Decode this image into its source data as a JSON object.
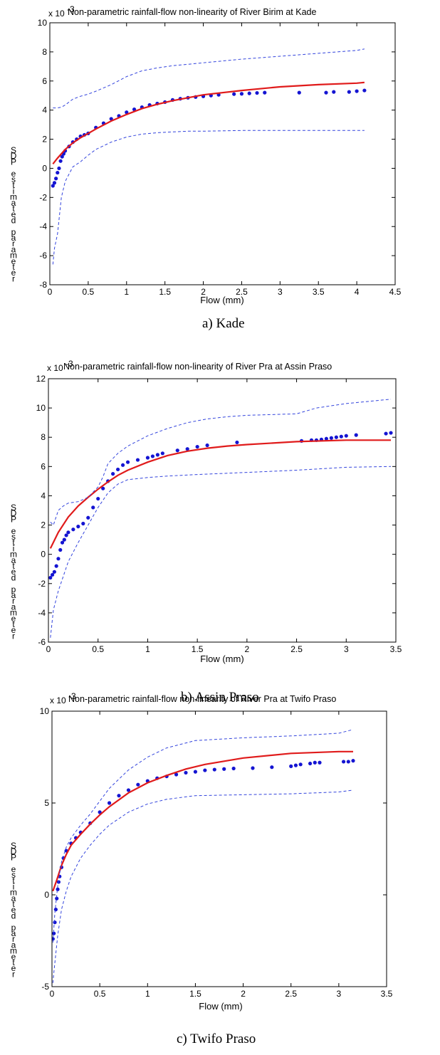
{
  "chart_data": [
    {
      "type": "scatter",
      "panel": "Kade",
      "title": "Non-parametric rainfall-flow non-linearity of River Birim at Kade",
      "y_exponent": "x 10",
      "y_exponent_power": "-3",
      "xlabel": "Flow (mm)",
      "ylabel": "SDP estimated parameter",
      "caption": "a) Kade",
      "xlim": [
        0,
        4.5
      ],
      "ylim": [
        -8,
        10
      ],
      "xticks": [
        "0",
        "0.5",
        "1",
        "1.5",
        "2",
        "2.5",
        "3",
        "3.5",
        "4",
        "4.5"
      ],
      "yticks": [
        "-8",
        "-6",
        "-4",
        "-2",
        "0",
        "2",
        "4",
        "6",
        "8",
        "10"
      ],
      "grid": false,
      "series": [
        {
          "kind": "points",
          "color": "#1414d2",
          "x": [
            0.04,
            0.06,
            0.08,
            0.1,
            0.12,
            0.14,
            0.16,
            0.18,
            0.2,
            0.25,
            0.3,
            0.35,
            0.4,
            0.45,
            0.5,
            0.6,
            0.7,
            0.8,
            0.9,
            1.0,
            1.1,
            1.2,
            1.3,
            1.4,
            1.5,
            1.6,
            1.7,
            1.8,
            1.9,
            2.0,
            2.1,
            2.2,
            2.4,
            2.5,
            2.6,
            2.7,
            2.8,
            3.25,
            3.6,
            3.7,
            3.9,
            4.0,
            4.1
          ],
          "y": [
            -1.2,
            -1.0,
            -0.7,
            -0.3,
            0.0,
            0.5,
            0.8,
            1.0,
            1.2,
            1.5,
            1.8,
            2.0,
            2.2,
            2.3,
            2.4,
            2.8,
            3.1,
            3.4,
            3.6,
            3.85,
            4.05,
            4.2,
            4.35,
            4.45,
            4.55,
            4.7,
            4.78,
            4.85,
            4.9,
            4.95,
            5.0,
            5.05,
            5.1,
            5.12,
            5.15,
            5.18,
            5.2,
            5.2,
            5.2,
            5.25,
            5.25,
            5.3,
            5.35
          ]
        },
        {
          "kind": "line",
          "color": "#e01b1b",
          "x": [
            0.04,
            0.1,
            0.2,
            0.3,
            0.4,
            0.5,
            0.6,
            0.8,
            1.0,
            1.2,
            1.4,
            1.6,
            1.8,
            2.0,
            2.5,
            3.0,
            3.5,
            4.0,
            4.1
          ],
          "y": [
            0.3,
            0.7,
            1.3,
            1.75,
            2.1,
            2.4,
            2.7,
            3.25,
            3.7,
            4.1,
            4.4,
            4.65,
            4.85,
            5.05,
            5.35,
            5.6,
            5.75,
            5.85,
            5.9
          ]
        },
        {
          "kind": "dashed",
          "color": "#3344dd",
          "x": [
            0.04,
            0.1,
            0.15,
            0.2,
            0.25,
            0.3,
            0.4,
            0.5,
            0.6,
            0.8,
            1.0,
            1.2,
            1.4,
            1.6,
            1.8,
            2.0,
            2.5,
            3.0,
            3.5,
            4.0,
            4.1
          ],
          "y": [
            4.15,
            4.15,
            4.2,
            4.35,
            4.55,
            4.75,
            4.95,
            5.1,
            5.3,
            5.75,
            6.3,
            6.7,
            6.9,
            7.05,
            7.15,
            7.25,
            7.5,
            7.7,
            7.9,
            8.1,
            8.2
          ]
        },
        {
          "kind": "dashed",
          "color": "#3344dd",
          "x": [
            0.04,
            0.06,
            0.1,
            0.15,
            0.2,
            0.3,
            0.4,
            0.5,
            0.6,
            0.8,
            1.0,
            1.2,
            1.4,
            1.6,
            1.8,
            2.0,
            2.5,
            3.0,
            3.5,
            4.0,
            4.1
          ],
          "y": [
            -6.6,
            -5.5,
            -4.5,
            -2.0,
            -0.9,
            0.1,
            0.45,
            0.9,
            1.3,
            1.8,
            2.15,
            2.35,
            2.45,
            2.5,
            2.55,
            2.55,
            2.6,
            2.6,
            2.6,
            2.6,
            2.6
          ]
        }
      ]
    },
    {
      "type": "scatter",
      "panel": "Assin Praso",
      "title": "Non-parametric rainfall-flow non-linearity of River Pra at Assin Praso",
      "y_exponent": "x 10",
      "y_exponent_power": "-3",
      "xlabel": "Flow (mm)",
      "ylabel": "SDP estimated parameter",
      "caption": "b) Assin Praso",
      "xlim": [
        0,
        3.5
      ],
      "ylim": [
        -6,
        12
      ],
      "xticks": [
        "0",
        "0.5",
        "1",
        "1.5",
        "2",
        "2.5",
        "3",
        "3.5"
      ],
      "yticks": [
        "-6",
        "-4",
        "-2",
        "0",
        "2",
        "4",
        "6",
        "8",
        "10",
        "12"
      ],
      "grid": false,
      "series": [
        {
          "kind": "points",
          "color": "#1414d2",
          "x": [
            0.02,
            0.04,
            0.06,
            0.08,
            0.1,
            0.12,
            0.14,
            0.16,
            0.18,
            0.2,
            0.25,
            0.3,
            0.35,
            0.4,
            0.45,
            0.5,
            0.55,
            0.6,
            0.65,
            0.7,
            0.75,
            0.8,
            0.9,
            1.0,
            1.05,
            1.1,
            1.15,
            1.3,
            1.4,
            1.5,
            1.6,
            1.9,
            2.55,
            2.65,
            2.7,
            2.75,
            2.8,
            2.85,
            2.9,
            2.95,
            3.0,
            3.1,
            3.4,
            3.45
          ],
          "y": [
            -1.6,
            -1.4,
            -1.2,
            -0.8,
            -0.3,
            0.3,
            0.8,
            1.0,
            1.3,
            1.5,
            1.7,
            1.9,
            2.1,
            2.5,
            3.2,
            3.8,
            4.5,
            5.0,
            5.5,
            5.8,
            6.1,
            6.3,
            6.45,
            6.6,
            6.7,
            6.8,
            6.9,
            7.1,
            7.2,
            7.35,
            7.45,
            7.65,
            7.75,
            7.8,
            7.8,
            7.85,
            7.9,
            7.95,
            8.0,
            8.05,
            8.1,
            8.15,
            8.25,
            8.3
          ]
        },
        {
          "kind": "line",
          "color": "#e01b1b",
          "x": [
            0.02,
            0.1,
            0.2,
            0.3,
            0.4,
            0.5,
            0.6,
            0.7,
            0.8,
            1.0,
            1.2,
            1.4,
            1.6,
            1.8,
            2.0,
            2.5,
            3.0,
            3.45
          ],
          "y": [
            0.4,
            1.5,
            2.55,
            3.3,
            3.9,
            4.45,
            4.95,
            5.4,
            5.75,
            6.3,
            6.75,
            7.05,
            7.25,
            7.4,
            7.5,
            7.7,
            7.8,
            7.8
          ]
        },
        {
          "kind": "dashed",
          "color": "#3344dd",
          "x": [
            0.02,
            0.05,
            0.1,
            0.15,
            0.2,
            0.3,
            0.4,
            0.5,
            0.55,
            0.6,
            0.7,
            0.8,
            1.0,
            1.2,
            1.4,
            1.6,
            1.8,
            2.0,
            2.5,
            2.7,
            3.0,
            3.45
          ],
          "y": [
            2.2,
            2.0,
            3.0,
            3.3,
            3.5,
            3.6,
            3.9,
            4.6,
            5.3,
            6.2,
            6.9,
            7.4,
            8.1,
            8.6,
            9.0,
            9.25,
            9.4,
            9.5,
            9.6,
            10.0,
            10.3,
            10.6
          ]
        },
        {
          "kind": "dashed",
          "color": "#3344dd",
          "x": [
            0.02,
            0.05,
            0.1,
            0.2,
            0.3,
            0.4,
            0.5,
            0.6,
            0.7,
            0.8,
            1.0,
            1.2,
            1.5,
            2.0,
            2.5,
            3.0,
            3.45
          ],
          "y": [
            -5.7,
            -3.8,
            -2.5,
            -0.5,
            0.8,
            2.0,
            3.2,
            4.2,
            4.8,
            5.1,
            5.25,
            5.35,
            5.45,
            5.6,
            5.75,
            5.95,
            6.0
          ]
        }
      ]
    },
    {
      "type": "scatter",
      "panel": "Twifo Praso",
      "title": "Non-parametric rainfall-flow non-linearity of River Pra at Twifo Praso",
      "y_exponent": "x 10",
      "y_exponent_power": "-3",
      "xlabel": "Flow (mm)",
      "ylabel": "SDP estimated parameter",
      "caption": "c) Twifo Praso",
      "xlim": [
        0,
        3.5
      ],
      "ylim": [
        -5,
        10
      ],
      "xticks": [
        "0",
        "0.5",
        "1",
        "1.5",
        "2",
        "2.5",
        "3",
        "3.5"
      ],
      "yticks": [
        "-5",
        "0",
        "5",
        "10"
      ],
      "grid": false,
      "series": [
        {
          "kind": "points",
          "color": "#1414d2",
          "x": [
            0.01,
            0.02,
            0.03,
            0.04,
            0.05,
            0.06,
            0.07,
            0.08,
            0.1,
            0.12,
            0.15,
            0.2,
            0.25,
            0.3,
            0.4,
            0.5,
            0.6,
            0.7,
            0.8,
            0.9,
            1.0,
            1.1,
            1.2,
            1.3,
            1.4,
            1.5,
            1.6,
            1.7,
            1.8,
            1.9,
            2.1,
            2.3,
            2.5,
            2.55,
            2.6,
            2.7,
            2.75,
            2.8,
            3.05,
            3.1,
            3.15
          ],
          "y": [
            -2.4,
            -2.1,
            -1.5,
            -0.8,
            -0.2,
            0.3,
            0.7,
            1.0,
            1.5,
            2.0,
            2.4,
            2.8,
            3.1,
            3.4,
            3.9,
            4.5,
            5.0,
            5.4,
            5.7,
            6.0,
            6.2,
            6.35,
            6.45,
            6.55,
            6.65,
            6.7,
            6.78,
            6.82,
            6.85,
            6.88,
            6.9,
            6.95,
            7.0,
            7.05,
            7.1,
            7.15,
            7.2,
            7.2,
            7.25,
            7.25,
            7.3
          ]
        },
        {
          "kind": "line",
          "color": "#e01b1b",
          "x": [
            0.01,
            0.05,
            0.1,
            0.15,
            0.2,
            0.3,
            0.4,
            0.5,
            0.6,
            0.8,
            1.0,
            1.2,
            1.4,
            1.6,
            2.0,
            2.5,
            3.0,
            3.15
          ],
          "y": [
            0.2,
            0.8,
            1.6,
            2.2,
            2.7,
            3.3,
            3.85,
            4.35,
            4.8,
            5.55,
            6.1,
            6.5,
            6.85,
            7.1,
            7.45,
            7.7,
            7.8,
            7.8
          ]
        },
        {
          "kind": "dashed",
          "color": "#3344dd",
          "x": [
            0.01,
            0.03,
            0.06,
            0.1,
            0.15,
            0.2,
            0.3,
            0.4,
            0.5,
            0.6,
            0.8,
            1.0,
            1.2,
            1.5,
            2.0,
            2.5,
            3.0,
            3.15
          ],
          "y": [
            -2.6,
            -1.0,
            0.5,
            1.8,
            2.6,
            3.1,
            3.8,
            4.4,
            5.1,
            5.8,
            6.8,
            7.5,
            8.0,
            8.4,
            8.55,
            8.65,
            8.8,
            9.0
          ]
        },
        {
          "kind": "dashed",
          "color": "#3344dd",
          "x": [
            0.01,
            0.02,
            0.04,
            0.06,
            0.1,
            0.15,
            0.2,
            0.3,
            0.4,
            0.5,
            0.6,
            0.8,
            1.0,
            1.2,
            1.5,
            2.0,
            2.5,
            3.0,
            3.15
          ],
          "y": [
            -4.8,
            -4.2,
            -3.2,
            -2.2,
            -0.8,
            0.2,
            1.0,
            2.0,
            2.7,
            3.3,
            3.8,
            4.5,
            4.95,
            5.2,
            5.4,
            5.45,
            5.5,
            5.6,
            5.7
          ]
        }
      ]
    }
  ]
}
